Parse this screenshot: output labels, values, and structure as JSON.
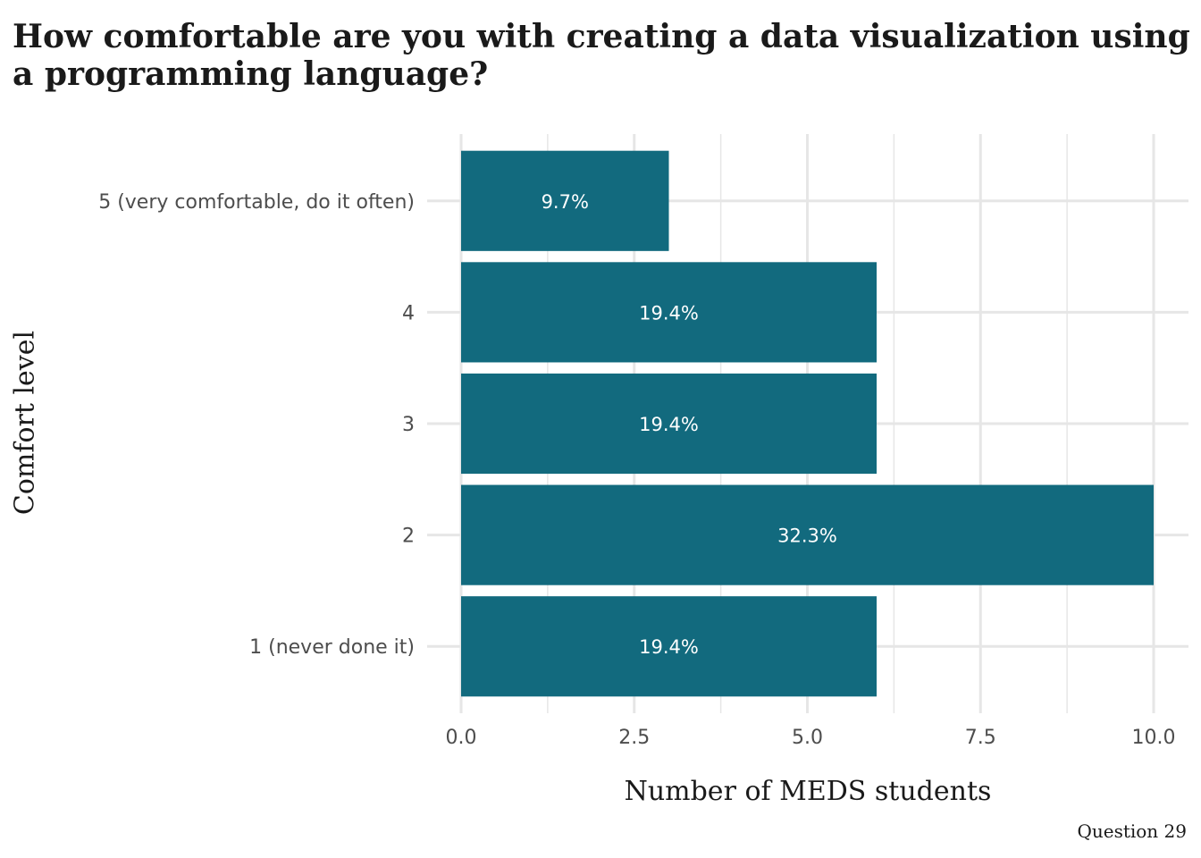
{
  "chart_data": {
    "type": "bar",
    "orientation": "horizontal",
    "title": "How comfortable are you with creating a data visualization using a programming language?",
    "xlabel": "Number of MEDS students",
    "ylabel": "Comfort level",
    "caption": "Question 29",
    "categories": [
      "1 (never done it)",
      "2",
      "3",
      "4",
      "5 (very comfortable, do it often)"
    ],
    "values": [
      6,
      10,
      6,
      6,
      3
    ],
    "labels": [
      "19.4%",
      "32.3%",
      "19.4%",
      "19.4%",
      "9.7%"
    ],
    "xlim": [
      0,
      10
    ],
    "xticks": [
      "0.0",
      "2.5",
      "5.0",
      "7.5",
      "10.0"
    ],
    "grid": true,
    "legend": "none",
    "colors": {
      "bar": "#126a7e",
      "grid": "#e6e6e6",
      "tick_text": "#4d4d4d",
      "bar_label": "#ffffff"
    }
  }
}
